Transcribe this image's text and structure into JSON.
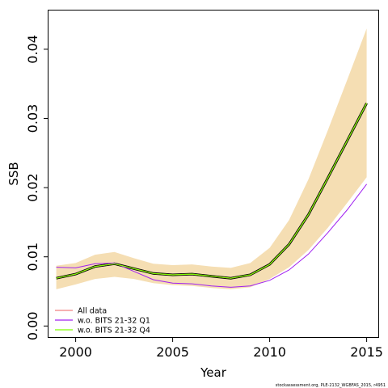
{
  "chart_data": {
    "type": "line",
    "title": "",
    "xlabel": "Year",
    "ylabel": "SSB",
    "xlim": [
      1998.6,
      2015.6
    ],
    "ylim": [
      -0.0016,
      0.0456
    ],
    "xticks": [
      2000,
      2005,
      2010,
      2015
    ],
    "yticks": [
      0.0,
      0.01,
      0.02,
      0.03,
      0.04
    ],
    "ytick_labels": [
      "0.00",
      "0.01",
      "0.02",
      "0.03",
      "0.04"
    ],
    "grid": false,
    "legend_position": "bottom-left",
    "x": [
      1999,
      2000,
      2001,
      2002,
      2003,
      2004,
      2005,
      2006,
      2007,
      2008,
      2009,
      2010,
      2011,
      2012,
      2013,
      2014,
      2015
    ],
    "confidence_band": {
      "color": "#f5deb3",
      "lower": [
        0.0053,
        0.006,
        0.0068,
        0.0071,
        0.0068,
        0.0062,
        0.0059,
        0.0058,
        0.0055,
        0.0053,
        0.0056,
        0.0068,
        0.0085,
        0.011,
        0.0142,
        0.0178,
        0.0215
      ],
      "upper": [
        0.0087,
        0.0091,
        0.0103,
        0.0107,
        0.0098,
        0.009,
        0.0088,
        0.0089,
        0.0086,
        0.0084,
        0.0091,
        0.0113,
        0.0153,
        0.0212,
        0.0283,
        0.0356,
        0.043
      ]
    },
    "series": [
      {
        "name": "All data",
        "color": "#f08080",
        "values": [
          0.0069,
          0.0075,
          0.0086,
          0.009,
          0.0083,
          0.0076,
          0.0074,
          0.0075,
          0.0072,
          0.0069,
          0.0074,
          0.0089,
          0.0118,
          0.0161,
          0.0214,
          0.0268,
          0.0322
        ]
      },
      {
        "name": "w.o. BITS 21-32 Q1",
        "color": "#a020f0",
        "values": [
          0.0085,
          0.0084,
          0.009,
          0.0091,
          0.0079,
          0.0067,
          0.0062,
          0.0061,
          0.0058,
          0.0056,
          0.0058,
          0.0066,
          0.0081,
          0.0104,
          0.0135,
          0.0168,
          0.0205
        ]
      },
      {
        "name": "w.o. BITS 21-32 Q4",
        "color": "#7fff00",
        "values": [
          0.0069,
          0.0075,
          0.0086,
          0.009,
          0.0083,
          0.0076,
          0.0074,
          0.0075,
          0.0072,
          0.0069,
          0.0074,
          0.0089,
          0.0118,
          0.0161,
          0.0214,
          0.0268,
          0.0322
        ]
      }
    ],
    "base_line_color": "#000000",
    "annotation": "stockassessment.org, PLE-2132_WGBFAS_2015, r4951"
  }
}
